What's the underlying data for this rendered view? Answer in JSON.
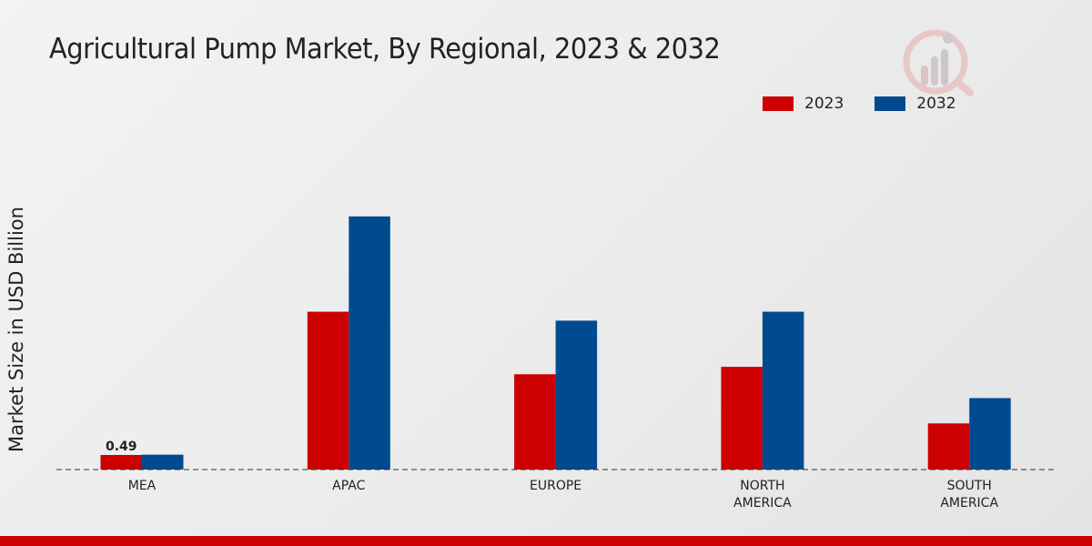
{
  "chart_data": {
    "type": "bar",
    "title": "Agricultural Pump Market, By Regional, 2023 & 2032",
    "ylabel": "Market Size in USD Billion",
    "xlabel": "",
    "categories": [
      [
        "MEA"
      ],
      [
        "APAC"
      ],
      [
        "EUROPE"
      ],
      [
        "NORTH",
        "AMERICA"
      ],
      [
        "SOUTH",
        "AMERICA"
      ]
    ],
    "series": [
      {
        "name": "2023",
        "color": "#cc0000",
        "values": [
          0.49,
          5.3,
          3.2,
          3.45,
          1.55
        ]
      },
      {
        "name": "2032",
        "color": "#004a8f",
        "values": [
          0.5,
          8.5,
          5.0,
          5.3,
          2.4
        ]
      }
    ],
    "data_labels": [
      {
        "series": 0,
        "index": 0,
        "text": "0.49"
      }
    ],
    "ylim": [
      0,
      11
    ],
    "grid": false,
    "legend": "top-right"
  },
  "colors": {
    "brand_red": "#cc0000",
    "brand_blue": "#004a8f"
  }
}
